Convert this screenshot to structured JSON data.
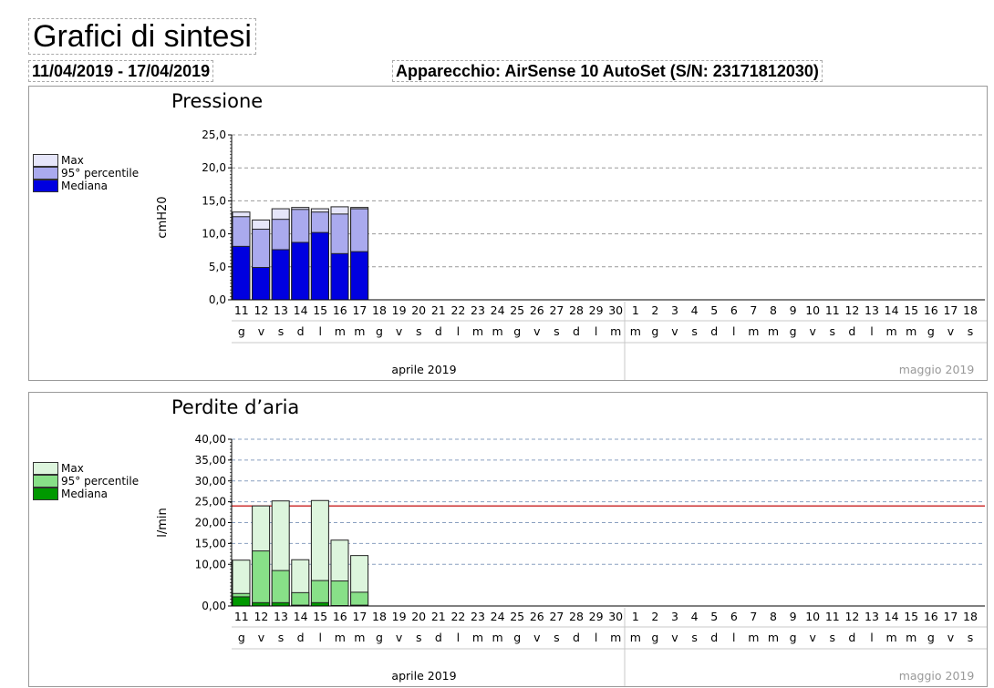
{
  "header": {
    "title": "Grafici di sintesi",
    "date_range": "11/04/2019 - 17/04/2019",
    "device": "Apparecchio: AirSense 10 AutoSet (S/N: 23171812030)"
  },
  "axis_days": [
    "11",
    "12",
    "13",
    "14",
    "15",
    "16",
    "17",
    "18",
    "19",
    "20",
    "21",
    "22",
    "23",
    "24",
    "25",
    "26",
    "27",
    "28",
    "29",
    "30",
    "1",
    "2",
    "3",
    "4",
    "5",
    "6",
    "7",
    "8",
    "9",
    "10",
    "11",
    "12",
    "13",
    "14",
    "15",
    "16",
    "17",
    "18"
  ],
  "axis_weekdays": [
    "g",
    "v",
    "s",
    "d",
    "l",
    "m",
    "m",
    "g",
    "v",
    "s",
    "d",
    "l",
    "m",
    "m",
    "g",
    "v",
    "s",
    "d",
    "l",
    "m",
    "m",
    "g",
    "v",
    "s",
    "d",
    "l",
    "m",
    "m",
    "g",
    "v",
    "s",
    "d",
    "l",
    "m",
    "m",
    "g",
    "v",
    "s"
  ],
  "month_labels": [
    "aprile 2019",
    "maggio 2019"
  ],
  "chart_data": [
    {
      "type": "bar",
      "title": "Pressione",
      "ylabel": "cmH20",
      "ylim": [
        0,
        25
      ],
      "yticks": [
        "0,0",
        "5,0",
        "10,0",
        "15,0",
        "20,0",
        "25,0"
      ],
      "grid": true,
      "legend": [
        "Max",
        "95° percentile",
        "Mediana"
      ],
      "colors": {
        "max": "#e6e6fa",
        "p95": "#aaaaee",
        "median": "#0000e0"
      },
      "categories": [
        "11",
        "12",
        "13",
        "14",
        "15",
        "16",
        "17"
      ],
      "series": [
        {
          "name": "Mediana",
          "values": [
            8.1,
            4.9,
            7.6,
            8.7,
            10.2,
            7.0,
            7.3
          ]
        },
        {
          "name": "95° percentile",
          "values": [
            12.6,
            10.7,
            12.2,
            13.7,
            13.3,
            13.0,
            13.8
          ]
        },
        {
          "name": "Max",
          "values": [
            13.3,
            12.1,
            13.8,
            14.0,
            13.8,
            14.1,
            14.0
          ]
        }
      ]
    },
    {
      "type": "bar",
      "title": "Perdite d’aria",
      "ylabel": "l/min",
      "ylim": [
        0,
        40
      ],
      "yticks": [
        "0,00",
        "10,00",
        "15,00",
        "20,00",
        "25,00",
        "30,00",
        "35,00",
        "40,00"
      ],
      "grid": true,
      "threshold": 24,
      "legend": [
        "Max",
        "95° percentile",
        "Mediana"
      ],
      "colors": {
        "max": "#ddf5dd",
        "p95": "#88e088",
        "median": "#009900",
        "threshold": "#cc3333"
      },
      "categories": [
        "11",
        "12",
        "13",
        "14",
        "15",
        "16",
        "17"
      ],
      "series": [
        {
          "name": "Mediana",
          "values": [
            2.2,
            0.8,
            0.8,
            0.2,
            0.8,
            0.1,
            0.2
          ]
        },
        {
          "name": "95° percentile",
          "values": [
            3.0,
            13.2,
            8.5,
            3.2,
            6.1,
            6.0,
            3.3
          ]
        },
        {
          "name": "Max",
          "values": [
            11.0,
            24.0,
            25.2,
            11.1,
            25.3,
            15.8,
            12.1
          ]
        }
      ]
    }
  ]
}
